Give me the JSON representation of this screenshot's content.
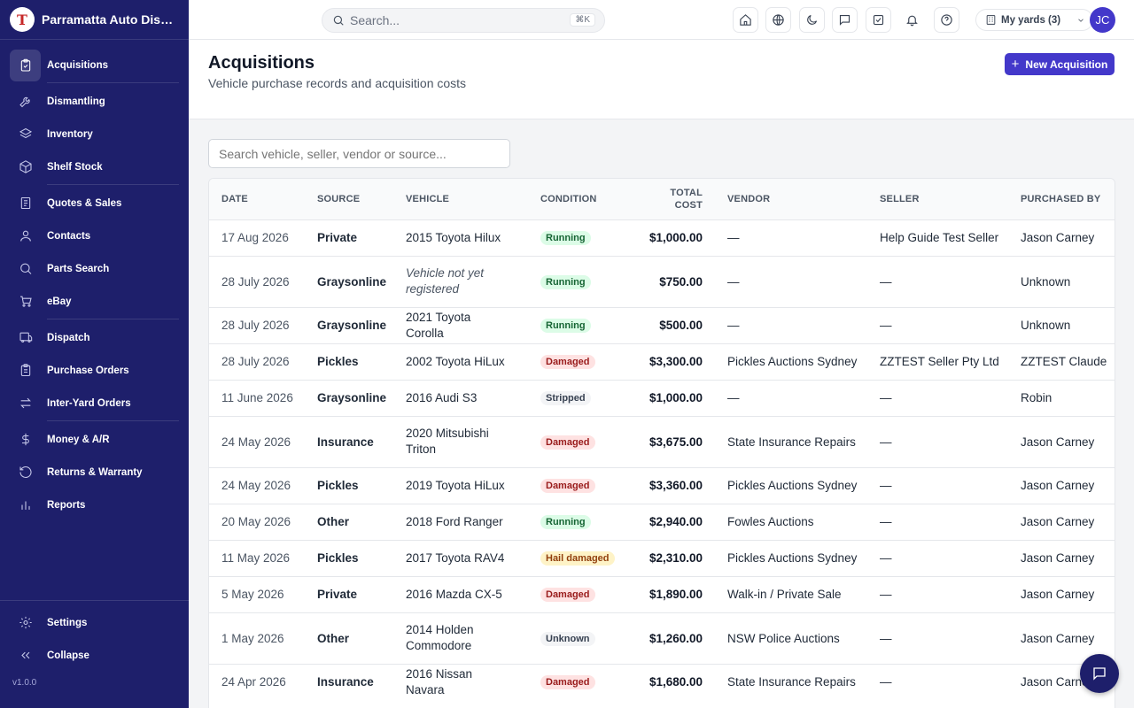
{
  "app": {
    "brand_name": "Parramatta Auto Dismantlers",
    "brand_initial": "T",
    "version": "v1.0.0"
  },
  "sidebar": {
    "items": [
      {
        "label": "Acquisitions",
        "icon": "clipboard-icon",
        "active": true
      },
      {
        "label": "Dismantling",
        "icon": "wrench-icon"
      },
      {
        "label": "Inventory",
        "icon": "layers-icon"
      },
      {
        "label": "Shelf Stock",
        "icon": "box-icon"
      },
      {
        "label": "Quotes & Sales",
        "icon": "receipt-icon"
      },
      {
        "label": "Contacts",
        "icon": "users-icon"
      },
      {
        "label": "Parts Search",
        "icon": "search-icon"
      },
      {
        "label": "eBay",
        "icon": "cart-icon"
      },
      {
        "label": "Dispatch",
        "icon": "truck-icon"
      },
      {
        "label": "Purchase Orders",
        "icon": "clipboard-list-icon"
      },
      {
        "label": "Inter-Yard Orders",
        "icon": "arrows-swap-icon"
      },
      {
        "label": "Money & A/R",
        "icon": "dollar-icon"
      },
      {
        "label": "Returns & Warranty",
        "icon": "rotate-ccw-icon"
      },
      {
        "label": "Reports",
        "icon": "bar-chart-icon"
      }
    ],
    "settings_label": "Settings",
    "collapse_label": "Collapse"
  },
  "topbar": {
    "search_placeholder": "Search...",
    "search_shortcut": "⌘K",
    "yards_label": "My yards (3)",
    "avatar_initials": "JC"
  },
  "header": {
    "title": "Acquisitions",
    "subtitle": "Vehicle purchase records and acquisition costs",
    "new_button": "New Acquisition"
  },
  "filter": {
    "placeholder": "Search vehicle, seller, vendor or source..."
  },
  "table": {
    "columns": [
      "Date",
      "Source",
      "Vehicle",
      "Condition",
      "Total Cost",
      "Vendor",
      "Seller",
      "Purchased By"
    ],
    "rows": [
      {
        "date": "17 Aug 2026",
        "source": "Private",
        "vehicle": "2015 Toyota Hilux",
        "condition": "Running",
        "cost": "$1,000.00",
        "vendor": "—",
        "seller": "Help Guide Test Seller",
        "by": "Jason Carney"
      },
      {
        "date": "28 July 2026",
        "source": "Graysonline",
        "vehicle": "Vehicle not yet registered",
        "vehicle_italic": true,
        "condition": "Running",
        "cost": "$750.00",
        "vendor": "—",
        "seller": "—",
        "by": "Unknown"
      },
      {
        "date": "28 July 2026",
        "source": "Graysonline",
        "vehicle": "2021 Toyota Corolla",
        "condition": "Running",
        "cost": "$500.00",
        "vendor": "—",
        "seller": "—",
        "by": "Unknown"
      },
      {
        "date": "28 July 2026",
        "source": "Pickles",
        "vehicle": "2002 Toyota HiLux",
        "condition": "Damaged",
        "cost": "$3,300.00",
        "vendor": "Pickles Auctions Sydney",
        "seller": "ZZTEST Seller Pty Ltd",
        "by": "ZZTEST Claude"
      },
      {
        "date": "11 June 2026",
        "source": "Graysonline",
        "vehicle": "2016 Audi S3",
        "condition": "Stripped",
        "cost": "$1,000.00",
        "vendor": "—",
        "seller": "—",
        "by": "Robin"
      },
      {
        "date": "24 May 2026",
        "source": "Insurance",
        "vehicle": "2020 Mitsubishi Triton",
        "condition": "Damaged",
        "cost": "$3,675.00",
        "vendor": "State Insurance Repairs",
        "seller": "—",
        "by": "Jason Carney"
      },
      {
        "date": "24 May 2026",
        "source": "Pickles",
        "vehicle": "2019 Toyota HiLux",
        "condition": "Damaged",
        "cost": "$3,360.00",
        "vendor": "Pickles Auctions Sydney",
        "seller": "—",
        "by": "Jason Carney"
      },
      {
        "date": "20 May 2026",
        "source": "Other",
        "vehicle": "2018 Ford Ranger",
        "condition": "Running",
        "cost": "$2,940.00",
        "vendor": "Fowles Auctions",
        "seller": "—",
        "by": "Jason Carney"
      },
      {
        "date": "11 May 2026",
        "source": "Pickles",
        "vehicle": "2017 Toyota RAV4",
        "condition": "Hail damaged",
        "cost": "$2,310.00",
        "vendor": "Pickles Auctions Sydney",
        "seller": "—",
        "by": "Jason Carney"
      },
      {
        "date": "5 May 2026",
        "source": "Private",
        "vehicle": "2016 Mazda CX-5",
        "condition": "Damaged",
        "cost": "$1,890.00",
        "vendor": "Walk-in / Private Sale",
        "seller": "—",
        "by": "Jason Carney"
      },
      {
        "date": "1 May 2026",
        "source": "Other",
        "vehicle": "2014 Holden Commodore",
        "condition": "Unknown",
        "cost": "$1,260.00",
        "vendor": "NSW Police Auctions",
        "seller": "—",
        "by": "Jason Carney"
      },
      {
        "date": "24 Apr 2026",
        "source": "Insurance",
        "vehicle": "2016 Nissan Navara",
        "condition": "Damaged",
        "cost": "$1,680.00",
        "vendor": "State Insurance Repairs",
        "seller": "—",
        "by": "Jason Carney"
      }
    ]
  },
  "colors": {
    "sidebar": "#1e1f6b",
    "accent": "#4338ca"
  }
}
